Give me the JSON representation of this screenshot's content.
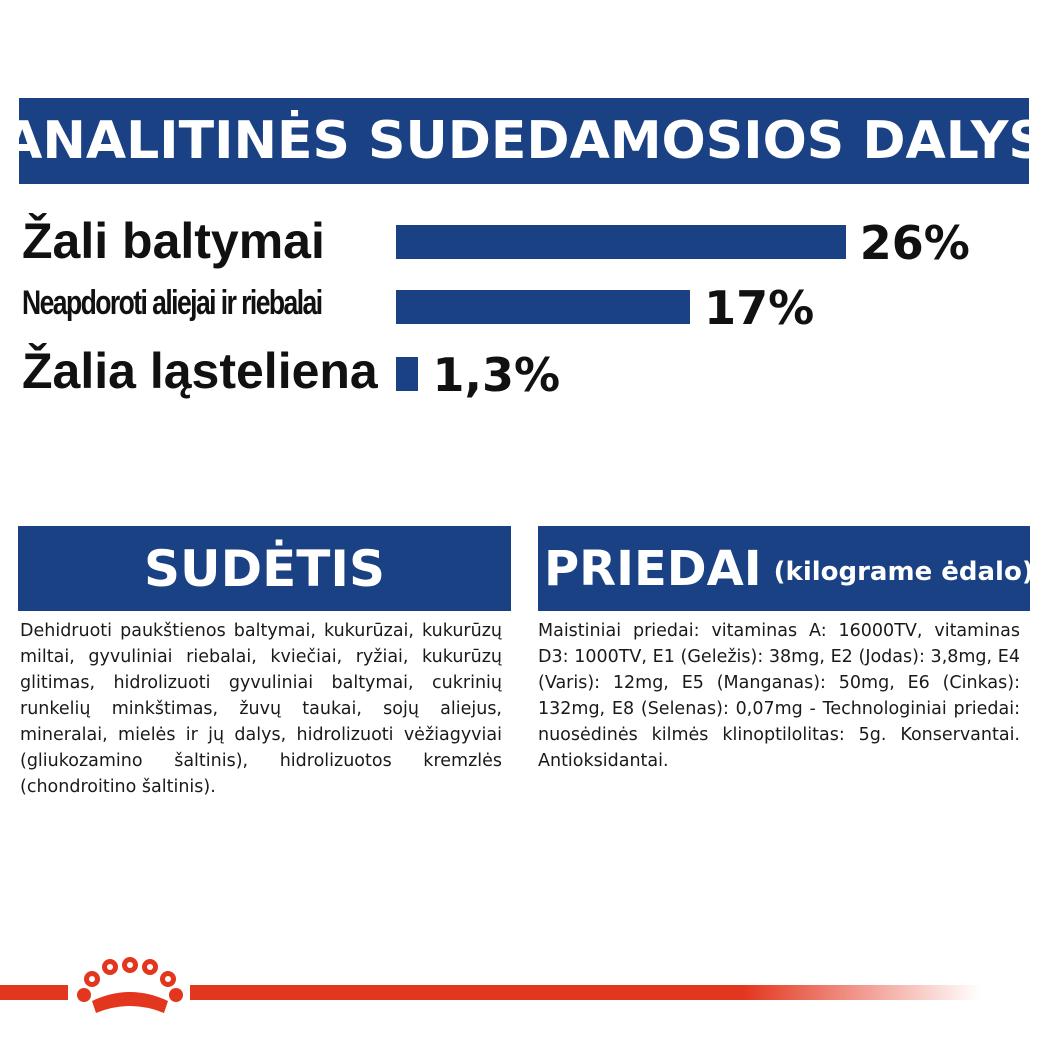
{
  "header": {
    "title": "ANALITINĖS SUDEDAMOSIOS DALYS"
  },
  "chart_data": {
    "type": "bar",
    "orientation": "horizontal",
    "title": "ANALITINĖS SUDEDAMOSIOS DALYS",
    "categories": [
      "Žali baltymai",
      "Neapdoroti aliejai ir riebalai",
      "Žalia ląsteliena"
    ],
    "values": [
      26,
      17,
      1.3
    ],
    "value_labels": [
      "26%",
      "17%",
      "1,3%"
    ],
    "unit": "%",
    "bar_color": "#1a4184",
    "grid": false
  },
  "sudetis": {
    "title": "SUDĖTIS",
    "text": "Dehidruoti paukštienos baltymai, kukurūzai, kukurūzų miltai, gyvuliniai riebalai, kviečiai, ryžiai, kukurūzų glitimas, hidrolizuoti gyvuliniai baltymai, cukrinių runkelių minkštimas, žuvų taukai, sojų aliejus, mineralai, mielės ir jų dalys, hidrolizuoti vėžiagyviai (gliukozamino šaltinis), hidrolizuotos kremzlės (chondroitino šaltinis)."
  },
  "priedai": {
    "title": "PRIEDAI",
    "subtitle": "(kilograme ėdalo)",
    "text": "Maistiniai priedai: vitaminas A: 16000TV, vitaminas D3: 1000TV, E1 (Geležis): 38mg, E2 (Jodas): 3,8mg, E4 (Varis): 12mg, E5 (Manganas): 50mg, E6 (Cinkas): 132mg, E8 (Selenas): 0,07mg - Technologiniai priedai: nuosėdinės kilmės klinoptilolitas: 5g. Konservantai. Antioksidantai."
  },
  "footer": {
    "logo_icon": "royal-canin-crown-icon",
    "accent_color": "#e3361f"
  }
}
